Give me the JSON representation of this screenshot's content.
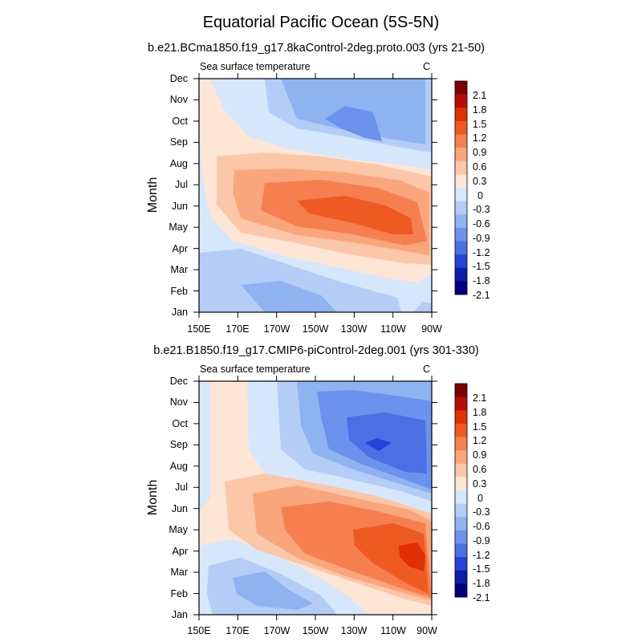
{
  "chart_data": {
    "type": "contour",
    "title": "Equatorial Pacific Ocean (5S-5N)",
    "colorbar": {
      "levels": [
        2.1,
        1.8,
        1.5,
        1.2,
        0.9,
        0.6,
        0.3,
        0,
        -0.3,
        -0.6,
        -0.9,
        -1.2,
        -1.5,
        -1.8,
        -2.1
      ],
      "level_labels": [
        "2.1",
        "1.8",
        "1.5",
        "1.2",
        "0.9",
        "0.6",
        "0.3",
        "0",
        "-0.3",
        "-0.6",
        "-0.9",
        "-1.2",
        "-1.5",
        "-1.8",
        "-2.1"
      ],
      "colors": [
        "#7f0000",
        "#b80c00",
        "#e03004",
        "#ef5a22",
        "#f57f4f",
        "#f9a67d",
        "#fbc7a8",
        "#fde6d6",
        "#d6e7fb",
        "#b3cdf6",
        "#8fb2f1",
        "#6b92ec",
        "#4a70e4",
        "#2742d8",
        "#0c1ea9",
        "#00007f"
      ]
    },
    "panels": [
      {
        "subtitle": "b.e21.BCma1850.f19_g17.8kaControl-2deg.proto.003 (yrs 21-50)",
        "left_string": "Sea surface temperature",
        "units": "C",
        "xlabel": "",
        "ylabel": "Month",
        "xticks": [
          "150E",
          "170E",
          "170W",
          "150W",
          "130W",
          "110W",
          "90W"
        ],
        "yticks": [
          "Jan",
          "Feb",
          "Mar",
          "Apr",
          "May",
          "Jun",
          "Jul",
          "Aug",
          "Sep",
          "Oct",
          "Nov",
          "Dec"
        ],
        "x_range": [
          150,
          270
        ],
        "features": [
          {
            "type": "warm_peak",
            "lon": 218,
            "month": 5.3,
            "max": 1.6
          },
          {
            "type": "cold_peak",
            "lon": 230,
            "month": 9.5,
            "min": -1.3
          },
          {
            "type": "cold_feature",
            "lon": 195,
            "month": 1.0,
            "min": -0.7
          }
        ]
      },
      {
        "subtitle": "b.e21.B1850.f19_g17.CMIP6-piControl-2deg.001 (yrs 301-330)",
        "left_string": "Sea surface temperature",
        "units": "C",
        "xlabel": "",
        "ylabel": "Month",
        "xticks": [
          "150E",
          "170E",
          "170W",
          "150W",
          "130W",
          "110W",
          "90W"
        ],
        "yticks": [
          "Jan",
          "Feb",
          "Mar",
          "Apr",
          "May",
          "Jun",
          "Jul",
          "Aug",
          "Sep",
          "Oct",
          "Nov",
          "Dec"
        ],
        "x_range": [
          150,
          270
        ],
        "features": [
          {
            "type": "warm_peak",
            "lon": 262,
            "month": 3.0,
            "max": 1.9
          },
          {
            "type": "cold_peak",
            "lon": 242,
            "month": 8.0,
            "min": -1.6
          },
          {
            "type": "cold_feature",
            "lon": 180,
            "month": 2.0,
            "min": -0.8
          }
        ]
      }
    ]
  }
}
